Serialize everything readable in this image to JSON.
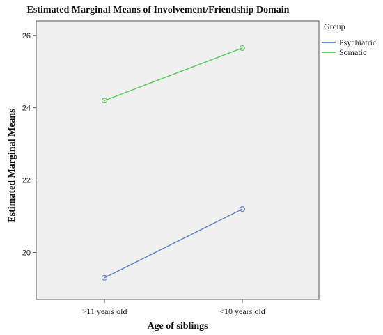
{
  "chart_data": {
    "type": "line",
    "title": "Estimated Marginal Means of Involvement/Friendship Domain",
    "xlabel": "Age of siblings",
    "ylabel": "Estimated Marginal Means",
    "categories": [
      ">11 years old",
      "<10 years old"
    ],
    "series": [
      {
        "name": "Psychiatric",
        "values": [
          19.3,
          21.2
        ],
        "color": "#6f82c4"
      },
      {
        "name": "Somatic",
        "values": [
          24.2,
          25.65
        ],
        "color": "#5fcb63"
      }
    ],
    "ylim": [
      18.7,
      26.4
    ],
    "yticks": [
      20,
      22,
      24,
      26
    ],
    "legend": {
      "title": "Group",
      "placement": "right"
    },
    "plot_background": "#f0f0f0",
    "grid": false,
    "markers": "open-circle"
  }
}
